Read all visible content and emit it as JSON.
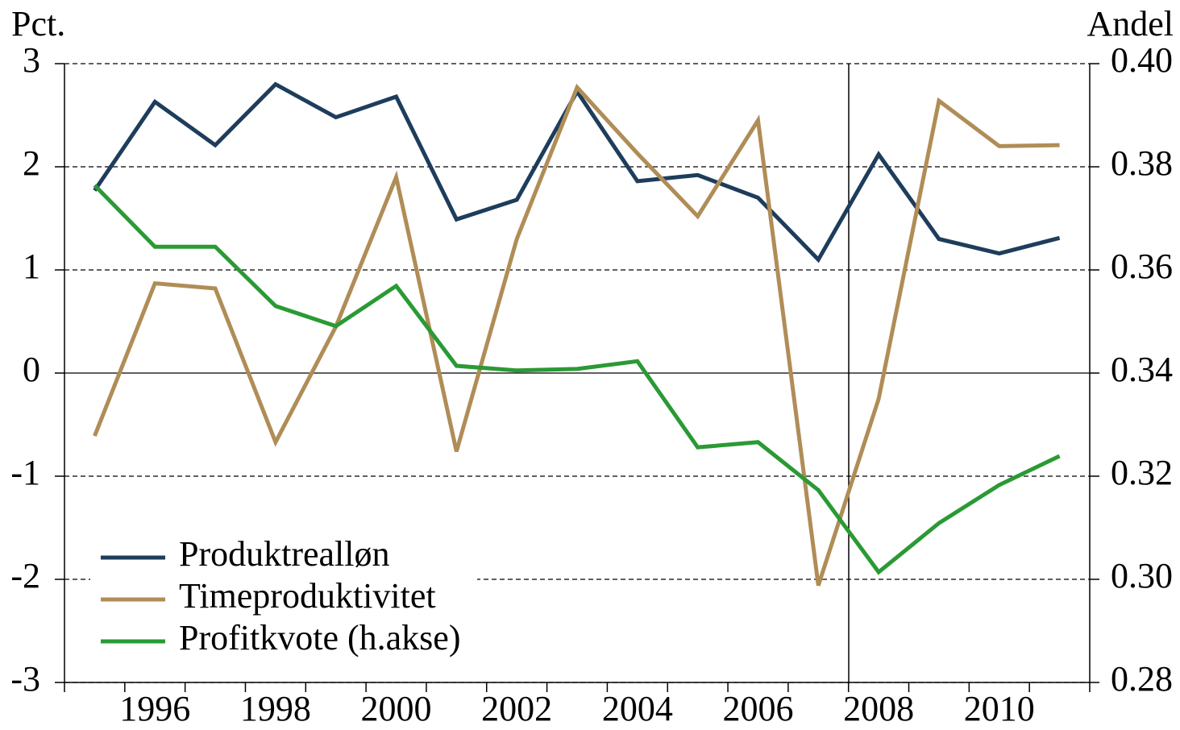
{
  "chart_data": {
    "type": "line",
    "y_label": "Pct.",
    "y2_label": "Andel",
    "categories": [
      null,
      "1996",
      null,
      "1998",
      null,
      "2000",
      null,
      "2002",
      null,
      "2004",
      null,
      "2006",
      null,
      "2008",
      null,
      "2010",
      null
    ],
    "series": [
      {
        "name": "Produktrealløn",
        "color": "#1e3d5c",
        "values": [
          1.77,
          2.63,
          2.21,
          2.8,
          2.48,
          2.68,
          1.49,
          1.68,
          2.73,
          1.86,
          1.92,
          1.7,
          1.1,
          2.12,
          1.3,
          1.16,
          1.31
        ]
      },
      {
        "name": "Timeproduktivitet",
        "color": "#b08d57",
        "values": [
          -0.61,
          0.87,
          0.82,
          -0.67,
          0.45,
          1.9,
          -0.76,
          1.3,
          2.77,
          2.13,
          1.52,
          2.45,
          -2.06,
          -0.25,
          2.64,
          2.2,
          2.21
        ]
      },
      {
        "name": "Profitkvote (h.akse)",
        "color": "#2a9a34",
        "axis": "y2",
        "values": [
          0.3764,
          0.3645,
          0.3645,
          0.353,
          0.3491,
          0.3569,
          0.3414,
          0.3405,
          0.3408,
          0.3423,
          0.3256,
          0.3266,
          0.3173,
          0.3014,
          0.3109,
          0.3183,
          0.3239
        ]
      }
    ],
    "ylim": [
      -3,
      3
    ],
    "yticks": [
      -3,
      -2,
      -1,
      0,
      1,
      2,
      3
    ],
    "y2lim": [
      0.28,
      0.4
    ],
    "y2ticks": [
      0.28,
      {
        "value": 0.3,
        "label": "0.30"
      },
      0.32,
      0.34,
      0.36,
      0.38,
      {
        "value": 0.4,
        "label": "0.40"
      }
    ],
    "grid": true,
    "legend": "lower left"
  }
}
